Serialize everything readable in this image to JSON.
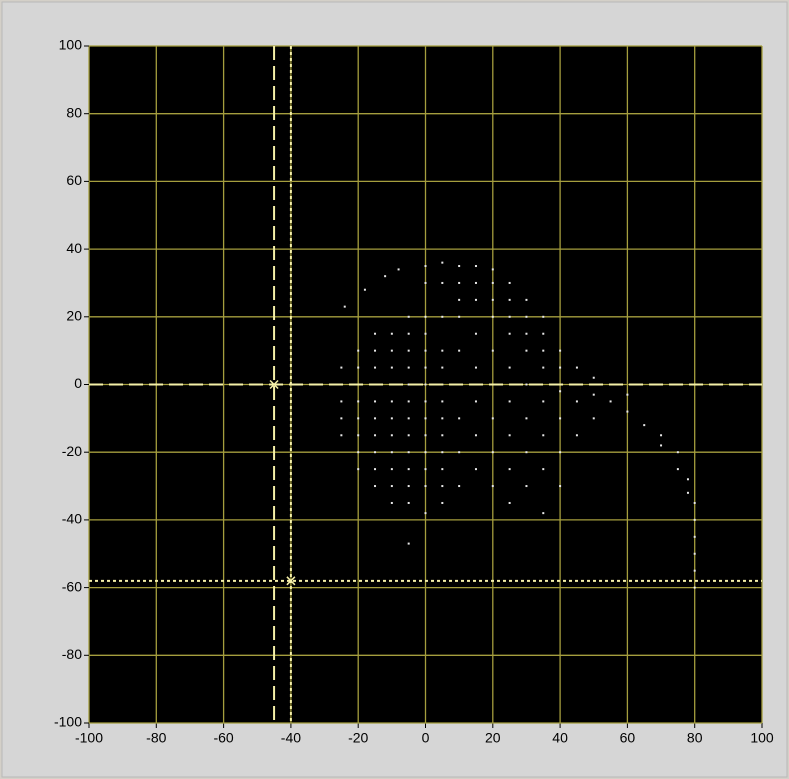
{
  "chart_data": {
    "type": "scatter",
    "xlim": [
      -100,
      100
    ],
    "ylim": [
      -100,
      100
    ],
    "xticks": [
      -100,
      -80,
      -60,
      -40,
      -20,
      0,
      20,
      40,
      60,
      80,
      100
    ],
    "yticks": [
      -100,
      -80,
      -60,
      -40,
      -20,
      0,
      20,
      40,
      60,
      80,
      100
    ],
    "grid": true,
    "grid_color": "#a59e3e",
    "plot_background": "#000000",
    "x": [
      -25,
      -25,
      -25,
      -25,
      -25,
      -24,
      -20,
      -20,
      -20,
      -20,
      -20,
      -20,
      -20,
      -20,
      -18,
      -15,
      -15,
      -15,
      -15,
      -15,
      -15,
      -15,
      -15,
      -15,
      -15,
      -12,
      -10,
      -10,
      -10,
      -10,
      -10,
      -10,
      -10,
      -10,
      -10,
      -10,
      -10,
      -8,
      -5,
      -5,
      -5,
      -5,
      -5,
      -5,
      -5,
      -5,
      -5,
      -5,
      -5,
      -5,
      -5,
      0,
      0,
      0,
      0,
      0,
      0,
      0,
      0,
      0,
      0,
      0,
      0,
      0,
      0,
      5,
      5,
      5,
      5,
      5,
      5,
      5,
      5,
      5,
      5,
      5,
      5,
      5,
      10,
      10,
      10,
      10,
      10,
      10,
      10,
      10,
      10,
      15,
      15,
      15,
      15,
      15,
      15,
      15,
      15,
      20,
      20,
      20,
      20,
      20,
      20,
      20,
      20,
      20,
      25,
      25,
      25,
      25,
      25,
      25,
      25,
      25,
      25,
      30,
      30,
      30,
      30,
      30,
      30,
      30,
      30,
      35,
      35,
      35,
      35,
      35,
      35,
      35,
      35,
      40,
      40,
      40,
      40,
      40,
      40,
      45,
      45,
      45,
      45,
      50,
      50,
      50,
      55,
      55,
      60,
      60,
      65,
      70,
      70,
      75,
      75,
      78,
      78,
      80,
      80,
      80,
      80,
      80,
      80
    ],
    "series": [
      {
        "color": "#e8e8e8",
        "values": [
          -15,
          -10,
          -5,
          0,
          5,
          23,
          -25,
          -20,
          -15,
          -10,
          -5,
          0,
          5,
          10,
          28,
          -30,
          -25,
          -20,
          -15,
          -10,
          -5,
          0,
          5,
          10,
          15,
          32,
          -35,
          -30,
          -25,
          -20,
          -15,
          -10,
          -5,
          0,
          5,
          10,
          15,
          34,
          -47,
          -35,
          -30,
          -25,
          -20,
          -15,
          -10,
          -5,
          0,
          5,
          10,
          15,
          20,
          -38,
          -30,
          -25,
          -20,
          -15,
          -10,
          -5,
          0,
          5,
          10,
          15,
          20,
          30,
          35,
          -35,
          -30,
          -25,
          -20,
          -15,
          -10,
          -5,
          0,
          5,
          10,
          20,
          30,
          36,
          -30,
          -20,
          -10,
          0,
          10,
          20,
          25,
          30,
          35,
          -25,
          -15,
          -5,
          5,
          15,
          25,
          30,
          35,
          -30,
          -20,
          -10,
          0,
          10,
          20,
          25,
          30,
          34,
          -35,
          -25,
          -15,
          -5,
          5,
          15,
          20,
          25,
          30,
          -30,
          -20,
          -10,
          0,
          10,
          15,
          20,
          25,
          -38,
          -25,
          -15,
          -5,
          5,
          10,
          15,
          20,
          -30,
          -20,
          -10,
          -2,
          5,
          10,
          -15,
          -5,
          0,
          5,
          -10,
          -3,
          2,
          -5,
          0,
          -3,
          -8,
          -12,
          -15,
          -18,
          -20,
          -25,
          -28,
          -32,
          -35,
          -40,
          -45,
          -50,
          -55,
          -60
        ]
      }
    ],
    "cursors": [
      {
        "x": -45,
        "y": 0,
        "style": "dashed",
        "color": "#f5f0a8"
      },
      {
        "x": -40,
        "y": -58,
        "style": "dotted",
        "color": "#f5f0a8"
      }
    ]
  }
}
